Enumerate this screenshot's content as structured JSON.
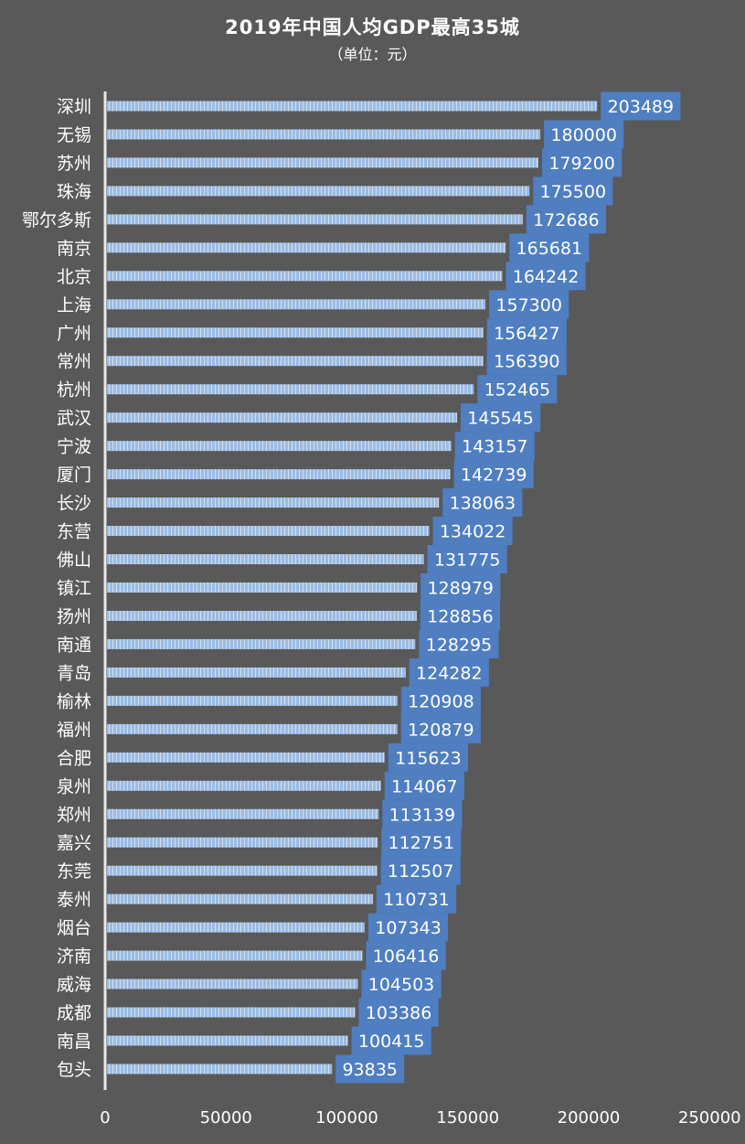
{
  "colors": {
    "background": "#595959",
    "bar": "#9BBBE3",
    "bar_stripe": "#ffffff",
    "label_box": "#4F7EC1",
    "text": "#ffffff",
    "axis": "#e8e8e8"
  },
  "chart_data": {
    "type": "bar",
    "orientation": "horizontal",
    "title": "2019年中国人均GDP最高35城",
    "subtitle": "（单位：元）",
    "categories": [
      "深圳",
      "无锡",
      "苏州",
      "珠海",
      "鄂尔多斯",
      "南京",
      "北京",
      "上海",
      "广州",
      "常州",
      "杭州",
      "武汉",
      "宁波",
      "厦门",
      "长沙",
      "东营",
      "佛山",
      "镇江",
      "扬州",
      "南通",
      "青岛",
      "榆林",
      "福州",
      "合肥",
      "泉州",
      "郑州",
      "嘉兴",
      "东莞",
      "泰州",
      "烟台",
      "济南",
      "威海",
      "成都",
      "南昌",
      "包头"
    ],
    "values": [
      203489,
      180000,
      179200,
      175500,
      172686,
      165681,
      164242,
      157300,
      156427,
      156390,
      152465,
      145545,
      143157,
      142739,
      138063,
      134022,
      131775,
      128979,
      128856,
      128295,
      124282,
      120908,
      120879,
      115623,
      114067,
      113139,
      112751,
      112507,
      110731,
      107343,
      106416,
      104503,
      103386,
      100415,
      93835
    ],
    "xlim": [
      0,
      250000
    ],
    "xticks": [
      0,
      50000,
      100000,
      150000,
      200000,
      250000
    ],
    "xtick_labels": [
      "0",
      "50000",
      "100000",
      "150000",
      "200000",
      "250000"
    ],
    "grid": false,
    "legend": "none"
  }
}
